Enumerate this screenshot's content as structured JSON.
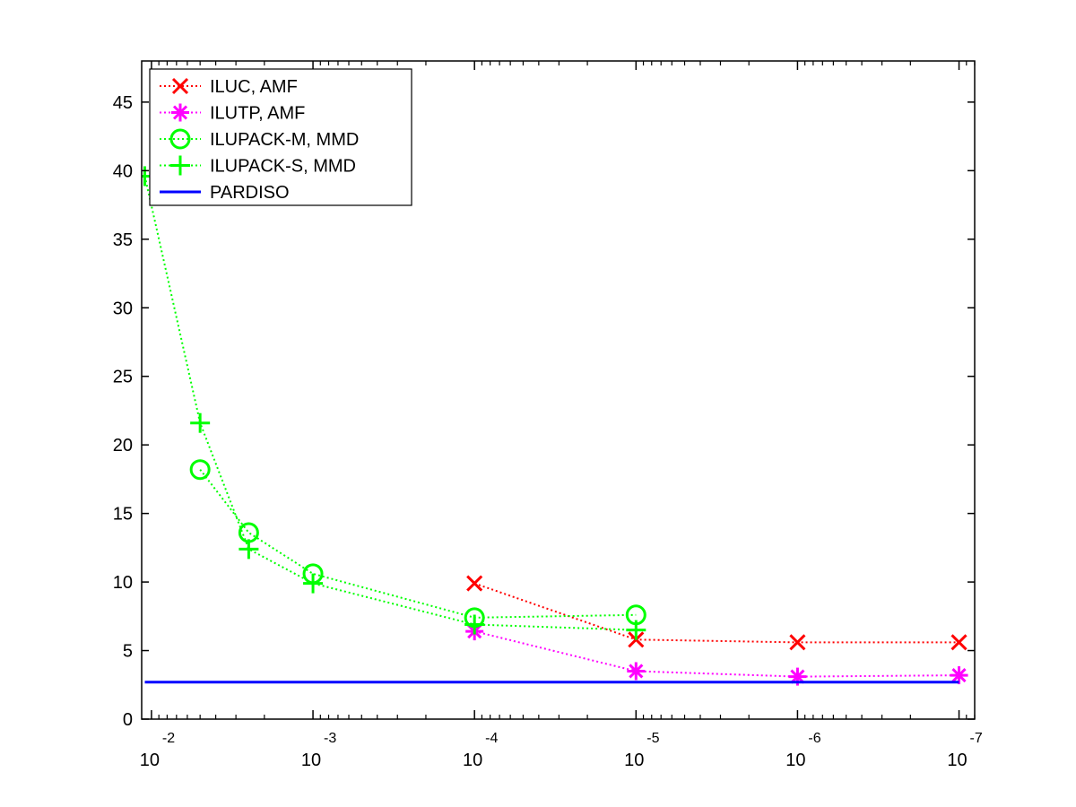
{
  "chart_data": {
    "type": "line",
    "title": "",
    "xlabel": "",
    "ylabel": "",
    "x_scale": "log",
    "x_reversed": true,
    "xlim": [
      0.0115,
      8e-08
    ],
    "ylim": [
      0,
      48
    ],
    "x_ticks": [
      {
        "value": 0.01,
        "base": "10",
        "exp": "-2"
      },
      {
        "value": 0.001,
        "base": "10",
        "exp": "-3"
      },
      {
        "value": 0.0001,
        "base": "10",
        "exp": "-4"
      },
      {
        "value": 1e-05,
        "base": "10",
        "exp": "-5"
      },
      {
        "value": 1e-06,
        "base": "10",
        "exp": "-6"
      },
      {
        "value": 1e-07,
        "base": "10",
        "exp": "-7"
      }
    ],
    "y_ticks": [
      0,
      5,
      10,
      15,
      20,
      25,
      30,
      35,
      40,
      45
    ],
    "grid": false,
    "legend_position": "top-left",
    "series": [
      {
        "name": "ILUC, AMF",
        "color": "#ff0000",
        "marker": "x",
        "line_style": "dotted",
        "x": [
          0.0001,
          1e-05,
          1e-06,
          1e-07
        ],
        "y": [
          9.9,
          5.8,
          5.6,
          5.6
        ]
      },
      {
        "name": "ILUTP, AMF",
        "color": "#ff00ff",
        "marker": "asterisk",
        "line_style": "dotted",
        "x": [
          0.0001,
          1e-05,
          1e-06,
          1e-07
        ],
        "y": [
          6.4,
          3.5,
          3.1,
          3.2
        ]
      },
      {
        "name": "ILUPACK-M, MMD",
        "color": "#00ff00",
        "marker": "circle",
        "line_style": "dotted",
        "x": [
          0.005,
          0.0025,
          0.001,
          0.0001,
          1e-05
        ],
        "y": [
          18.2,
          13.6,
          10.6,
          7.4,
          7.6
        ]
      },
      {
        "name": "ILUPACK-S, MMD",
        "color": "#00ff00",
        "marker": "plus",
        "line_style": "dotted",
        "x": [
          0.011,
          0.005,
          0.0025,
          0.001,
          0.0001,
          1e-05
        ],
        "y": [
          39.6,
          21.6,
          12.4,
          9.9,
          6.9,
          6.5
        ]
      },
      {
        "name": "PARDISO",
        "color": "#0000ff",
        "marker": "none",
        "line_style": "solid",
        "x": [
          0.011,
          1e-07
        ],
        "y": [
          2.7,
          2.7
        ]
      }
    ]
  }
}
